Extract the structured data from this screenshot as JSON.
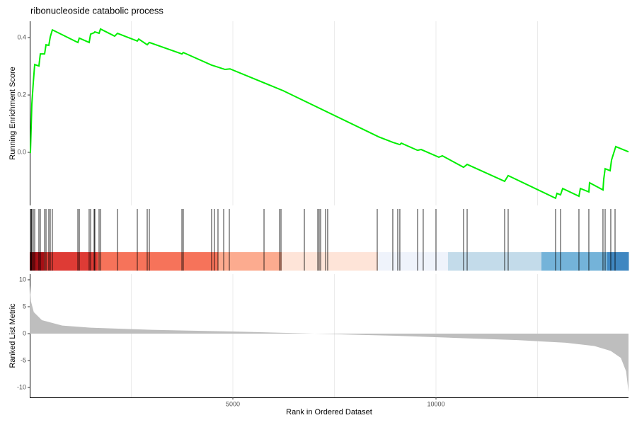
{
  "chart_data": [
    {
      "type": "line",
      "title": "ribonucleoside catabolic process",
      "y_label": "Running Enrichment Score",
      "xlim": [
        0,
        14739
      ],
      "xgrid": [
        2500,
        5000,
        7500,
        10000,
        12500
      ],
      "ylim": [
        -0.185,
        0.457
      ],
      "yticks": [
        {
          "value": 0,
          "label": "0.0"
        },
        0.2,
        0.4
      ],
      "x": [
        0,
        17,
        35,
        52,
        87,
        122,
        226,
        261,
        366,
        401,
        470,
        505,
        557,
        1185,
        1220,
        1463,
        1498,
        1585,
        1603,
        1707,
        1742,
        2091,
        2160,
        2648,
        2683,
        2892,
        2944,
        3746,
        3780,
        4477,
        4547,
        4808,
        4930,
        6237,
        8589,
        8937,
        9111,
        9146,
        9547,
        9634,
        10070,
        10157,
        10679,
        10767,
        11690,
        11777,
        12944,
        12979,
        13066,
        13118,
        13519,
        13554,
        13763,
        13780,
        14111,
        14129,
        14164,
        14286,
        14321,
        14425,
        14739
      ],
      "series": [
        {
          "color": "#00ee00",
          "values": [
            0,
            0,
            0.086,
            0.168,
            0.242,
            0.306,
            0.301,
            0.343,
            0.343,
            0.375,
            0.373,
            0.402,
            0.427,
            0.383,
            0.398,
            0.383,
            0.412,
            0.417,
            0.42,
            0.415,
            0.43,
            0.405,
            0.415,
            0.388,
            0.395,
            0.375,
            0.383,
            0.343,
            0.348,
            0.304,
            0.301,
            0.289,
            0.291,
            0.215,
            0.054,
            0.035,
            0.027,
            0.032,
            0.007,
            0.01,
            -0.017,
            -0.012,
            -0.052,
            -0.042,
            -0.101,
            -0.081,
            -0.16,
            -0.143,
            -0.148,
            -0.126,
            -0.153,
            -0.126,
            -0.138,
            -0.106,
            -0.131,
            -0.094,
            -0.057,
            -0.064,
            -0.027,
            0.02,
            0.002
          ]
        }
      ]
    },
    {
      "type": "rug",
      "xlim": [
        0,
        14739
      ],
      "hits": [
        17,
        35,
        52,
        87,
        122,
        226,
        261,
        366,
        401,
        470,
        505,
        557,
        1185,
        1220,
        1463,
        1498,
        1585,
        1603,
        1707,
        1742,
        2160,
        2648,
        2892,
        2944,
        3746,
        3780,
        4477,
        4547,
        4634,
        4774,
        4913,
        5767,
        6150,
        6185,
        6760,
        7091,
        7125,
        7160,
        7282,
        7334,
        8554,
        8937,
        9059,
        9111,
        9547,
        9686,
        10000,
        10679,
        10767,
        11690,
        11777,
        12944,
        13066,
        13519,
        13763,
        14111,
        14164,
        14303,
        14408
      ],
      "band": [
        {
          "start": 0,
          "end": 348,
          "color": "#a50f15"
        },
        {
          "start": 348,
          "end": 1672,
          "color": "#de3b35"
        },
        {
          "start": 1672,
          "end": 4634,
          "color": "#f6735a"
        },
        {
          "start": 4634,
          "end": 6202,
          "color": "#fcab8f"
        },
        {
          "start": 6202,
          "end": 8571,
          "color": "#fee4d8"
        },
        {
          "start": 8571,
          "end": 10296,
          "color": "#eff3fb"
        },
        {
          "start": 10296,
          "end": 12596,
          "color": "#c3dbea"
        },
        {
          "start": 12596,
          "end": 14216,
          "color": "#74b3d9"
        },
        {
          "start": 14216,
          "end": 14739,
          "color": "#3f87c1"
        }
      ]
    },
    {
      "type": "area",
      "x_label": "Rank in Ordered Dataset",
      "y_label": "Ranked List Metric",
      "color": "#bebebe",
      "xlim": [
        0,
        14739
      ],
      "xgrid": [
        2500,
        5000,
        7500,
        10000,
        12500
      ],
      "xticks": [
        5000,
        10000
      ],
      "ylim": [
        -11.84,
        11.05
      ],
      "yticks": [
        10,
        5,
        0,
        -5,
        -10
      ],
      "x": [
        0,
        30,
        100,
        300,
        800,
        1500,
        3000,
        5000,
        6500,
        7500,
        9000,
        10500,
        12000,
        13200,
        13900,
        14300,
        14550,
        14680,
        14739
      ],
      "values": [
        9,
        6,
        4,
        2.5,
        1.5,
        1.1,
        0.7,
        0.4,
        0.1,
        -0.1,
        -0.4,
        -0.8,
        -1.2,
        -1.7,
        -2.3,
        -3.2,
        -4.5,
        -7,
        -10.8
      ]
    }
  ]
}
